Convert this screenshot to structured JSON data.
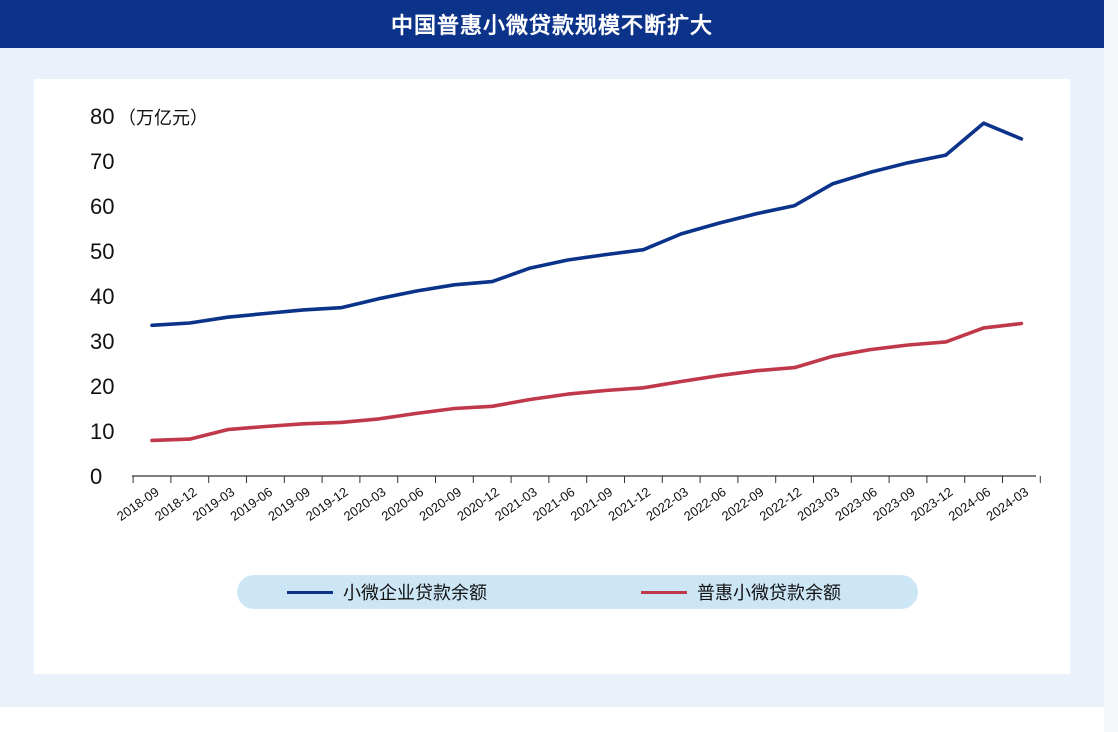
{
  "title": "中国普惠小微贷款规模不断扩大",
  "chart_data": {
    "type": "line",
    "unit": "（万亿元）",
    "ylim": [
      0,
      80
    ],
    "yticks": [
      "0",
      "10",
      "20",
      "30",
      "40",
      "50",
      "60",
      "70",
      "80"
    ],
    "x": [
      "2018-09",
      "2018-12",
      "2019-03",
      "2019-06",
      "2019-09",
      "2019-12",
      "2020-03",
      "2020-06",
      "2020-09",
      "2020-12",
      "2021-03",
      "2021-06",
      "2021-09",
      "2021-12",
      "2022-03",
      "2022-06",
      "2022-09",
      "2022-12",
      "2023-03",
      "2023-06",
      "2023-09",
      "2023-12",
      "2024-06",
      "2024-03"
    ],
    "series": [
      {
        "name": "小微企业贷款余额",
        "color": "#0b3389",
        "values": [
          33.5,
          34.0,
          35.3,
          36.1,
          36.9,
          37.4,
          39.4,
          41.1,
          42.5,
          43.2,
          46.2,
          48.0,
          49.2,
          50.3,
          53.8,
          56.2,
          58.3,
          60.1,
          64.9,
          67.5,
          69.6,
          71.3,
          78.4,
          74.9
        ]
      },
      {
        "name": "普惠小微贷款余额",
        "color": "#c0394b",
        "values": [
          7.9,
          8.2,
          10.3,
          11.0,
          11.6,
          11.9,
          12.7,
          13.9,
          15.0,
          15.5,
          17.0,
          18.2,
          19.0,
          19.6,
          21.0,
          22.3,
          23.4,
          24.1,
          26.6,
          28.1,
          29.1,
          29.8,
          32.9,
          33.9
        ]
      }
    ]
  },
  "legend": {
    "items": [
      {
        "label": "小微企业贷款余额",
        "color": "#0b3389"
      },
      {
        "label": "普惠小微贷款余额",
        "color": "#c0394b"
      }
    ]
  }
}
